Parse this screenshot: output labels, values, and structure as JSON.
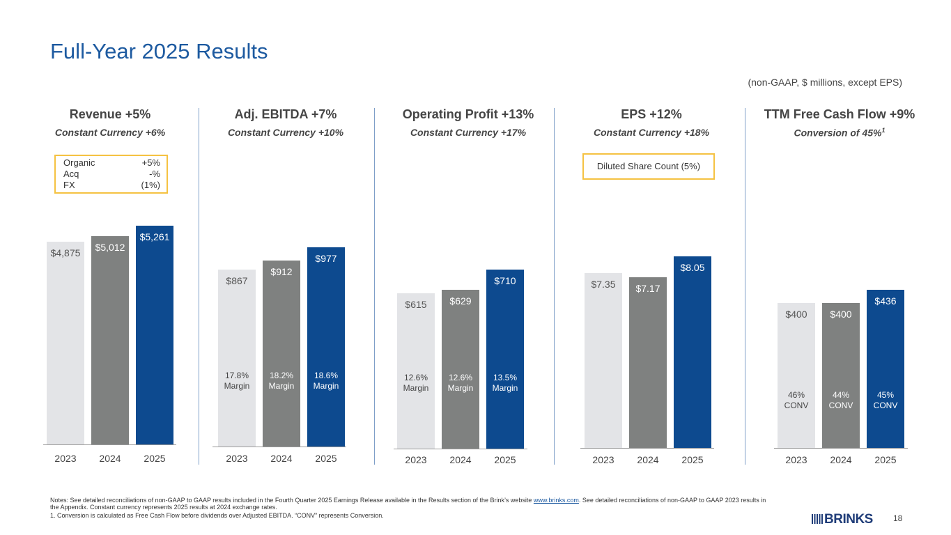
{
  "header": {
    "title": "Full-Year 2025 Results",
    "units_note": "(non-GAAP, $ millions, except EPS)"
  },
  "colors": {
    "title": "#1d5aa0",
    "bar_2023": "#e3e4e7",
    "bar_2024": "#7f8180",
    "bar_2025": "#0d4a8f",
    "callout_border": "#f5c242",
    "separator": "#7f9fc8"
  },
  "panels": [
    {
      "title": "Revenue +5%",
      "subtitle": "Constant Currency +6%",
      "callout": {
        "rows": [
          {
            "label": "Organic",
            "value": "+5%"
          },
          {
            "label": "Acq",
            "value": "-%"
          },
          {
            "label": "FX",
            "value": "(1%)"
          }
        ]
      }
    },
    {
      "title": "Adj. EBITDA  +7%",
      "subtitle": "Constant Currency +10%"
    },
    {
      "title": "Operating Profit +13%",
      "subtitle": "Constant Currency +17%"
    },
    {
      "title": "EPS  +12%",
      "subtitle": "Constant Currency +18%",
      "callout": {
        "text": "Diluted Share Count (5%)"
      }
    },
    {
      "title": "TTM Free Cash Flow +9%",
      "subtitle": "Conversion of 45%",
      "subtitle_sup": "1"
    }
  ],
  "chart_data": [
    {
      "type": "bar",
      "title": "Revenue +5%",
      "categories": [
        "2023",
        "2024",
        "2025"
      ],
      "values": [
        4875,
        5012,
        5261
      ],
      "value_labels": [
        "$4,875",
        "$5,012",
        "$5,261"
      ],
      "notes": []
    },
    {
      "type": "bar",
      "title": "Adj. EBITDA  +7%",
      "categories": [
        "2023",
        "2024",
        "2025"
      ],
      "values": [
        867,
        912,
        977
      ],
      "value_labels": [
        "$867",
        "$912",
        "$977"
      ],
      "notes": [
        [
          "17.8%",
          "Margin"
        ],
        [
          "18.2%",
          "Margin"
        ],
        [
          "18.6%",
          "Margin"
        ]
      ]
    },
    {
      "type": "bar",
      "title": "Operating Profit +13%",
      "categories": [
        "2023",
        "2024",
        "2025"
      ],
      "values": [
        615,
        629,
        710
      ],
      "value_labels": [
        "$615",
        "$629",
        "$710"
      ],
      "notes": [
        [
          "12.6%",
          "Margin"
        ],
        [
          "12.6%",
          "Margin"
        ],
        [
          "13.5%",
          "Margin"
        ]
      ]
    },
    {
      "type": "bar",
      "title": "EPS  +12%",
      "categories": [
        "2023",
        "2024",
        "2025"
      ],
      "values": [
        7.35,
        7.17,
        8.05
      ],
      "value_labels": [
        "$7.35",
        "$7.17",
        "$8.05"
      ],
      "notes": []
    },
    {
      "type": "bar",
      "title": "TTM Free Cash Flow +9%",
      "categories": [
        "2023",
        "2024",
        "2025"
      ],
      "values": [
        400,
        400,
        436
      ],
      "value_labels": [
        "$400",
        "$400",
        "$436"
      ],
      "notes": [
        [
          "46%",
          "CONV"
        ],
        [
          "44%",
          "CONV"
        ],
        [
          "45%",
          "CONV"
        ]
      ]
    }
  ],
  "footer": {
    "notes_line1_pre": "Notes: See detailed reconciliations of non-GAAP to GAAP results included in the Fourth Quarter 2025 Earnings Release available in the Results section of the Brink’s website ",
    "notes_link": "www.brinks.com",
    "notes_line1_post": ". See detailed reconciliations of non-GAAP to GAAP 2023 results in the Appendix. Constant currency represents 2025 results at 2024 exchange rates.",
    "notes_line2": "1. Conversion is calculated as Free Cash Flow before dividends over Adjusted EBITDA. “CONV” represents Conversion.",
    "logo": "BRINKS",
    "page_number": "18"
  }
}
